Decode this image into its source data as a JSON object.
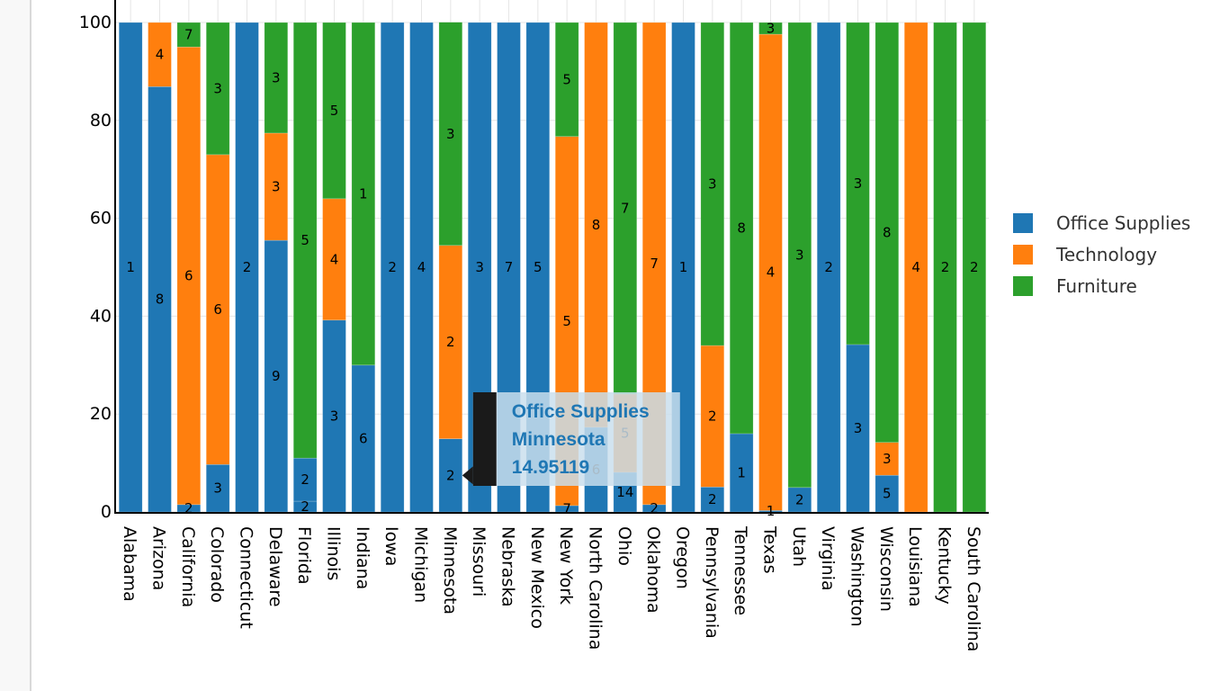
{
  "chart_data": {
    "type": "bar",
    "barmode": "stack",
    "title": "",
    "xlabel": "",
    "ylabel": "",
    "ylim": [
      0,
      100
    ],
    "yticks": [
      0,
      20,
      40,
      60,
      80,
      100
    ],
    "grid": true,
    "legend_position": "right",
    "categories": [
      "Alabama",
      "Arizona",
      "California",
      "Colorado",
      "Connecticut",
      "Delaware",
      "Florida",
      "Illinois",
      "Indiana",
      "Iowa",
      "Michigan",
      "Minnesota",
      "Missouri",
      "Nebraska",
      "New Mexico",
      "New York",
      "North Carolina",
      "Ohio",
      "Oklahoma",
      "Oregon",
      "Pennsylvania",
      "Tennessee",
      "Texas",
      "Utah",
      "Virginia",
      "Washington",
      "Wisconsin",
      "Louisiana",
      "Kentucky",
      "South Carolina"
    ],
    "series": [
      {
        "name": "Office Supplies",
        "color": "#1f77b4",
        "segments": [
          [
            {
              "value": 100,
              "label": "1"
            }
          ],
          [
            {
              "value": 86.9,
              "label": "8"
            }
          ],
          [
            {
              "value": 1.5,
              "label": "2"
            }
          ],
          [
            {
              "value": 9.7,
              "label": "3"
            }
          ],
          [
            {
              "value": 100,
              "label": "2"
            }
          ],
          [
            {
              "value": 55.5,
              "label": "9"
            }
          ],
          [
            {
              "value": 2.2,
              "label": "2"
            },
            {
              "value": 8.8,
              "label": "2"
            }
          ],
          [
            {
              "value": 39.2,
              "label": "3"
            }
          ],
          [
            {
              "value": 30.0,
              "label": "6"
            }
          ],
          [
            {
              "value": 100,
              "label": "2"
            }
          ],
          [
            {
              "value": 100,
              "label": "4"
            }
          ],
          [
            {
              "value": 14.95119,
              "label": "2"
            }
          ],
          [
            {
              "value": 100,
              "label": "3"
            }
          ],
          [
            {
              "value": 100,
              "label": "7"
            }
          ],
          [
            {
              "value": 100,
              "label": "5"
            }
          ],
          [
            {
              "value": 1.3,
              "label": "7"
            }
          ],
          [
            {
              "value": 17.3,
              "label": "6"
            }
          ],
          [
            {
              "value": 8.1,
              "label": "14"
            }
          ],
          [
            {
              "value": 1.5,
              "label": "2"
            }
          ],
          [
            {
              "value": 100,
              "label": "1"
            }
          ],
          [
            {
              "value": 5.1,
              "label": "2"
            }
          ],
          [
            {
              "value": 16.0,
              "label": "1"
            }
          ],
          [
            {
              "value": 0.3,
              "label": "1"
            }
          ],
          [
            {
              "value": 5.0,
              "label": "2"
            }
          ],
          [
            {
              "value": 100,
              "label": "2"
            }
          ],
          [
            {
              "value": 34.2,
              "label": "3"
            }
          ],
          [
            {
              "value": 7.5,
              "label": "5"
            }
          ],
          [],
          [],
          []
        ]
      },
      {
        "name": "Technology",
        "color": "#ff7f0e",
        "segments": [
          [],
          [
            {
              "value": 13.1,
              "label": "4"
            }
          ],
          [
            {
              "value": 93.5,
              "label": "6"
            }
          ],
          [
            {
              "value": 63.3,
              "label": "6"
            }
          ],
          [],
          [
            {
              "value": 21.9,
              "label": "3"
            }
          ],
          [],
          [
            {
              "value": 24.8,
              "label": "4"
            }
          ],
          [],
          [],
          [],
          [
            {
              "value": 39.5,
              "label": "2"
            }
          ],
          [],
          [],
          [],
          [
            {
              "value": 75.4,
              "label": "5"
            }
          ],
          [
            {
              "value": 82.7,
              "label": "8"
            }
          ],
          [
            {
              "value": 16.0,
              "label": "5"
            }
          ],
          [
            {
              "value": 98.5,
              "label": "7"
            }
          ],
          [],
          [
            {
              "value": 28.9,
              "label": "2"
            }
          ],
          [],
          [
            {
              "value": 97.3,
              "label": "4"
            }
          ],
          [],
          [],
          [],
          [
            {
              "value": 6.7,
              "label": "3"
            }
          ],
          [
            {
              "value": 100,
              "label": "4"
            }
          ],
          [],
          []
        ]
      },
      {
        "name": "Furniture",
        "color": "#2ca02c",
        "segments": [
          [],
          [],
          [
            {
              "value": 5.0,
              "label": "7"
            }
          ],
          [
            {
              "value": 27.0,
              "label": "3"
            }
          ],
          [],
          [
            {
              "value": 22.6,
              "label": "3"
            }
          ],
          [
            {
              "value": 89.0,
              "label": "5"
            }
          ],
          [
            {
              "value": 36.0,
              "label": "5"
            }
          ],
          [
            {
              "value": 70.0,
              "label": "1"
            }
          ],
          [],
          [],
          [
            {
              "value": 45.6,
              "label": "3"
            }
          ],
          [],
          [],
          [],
          [
            {
              "value": 23.3,
              "label": "5"
            }
          ],
          [],
          [
            {
              "value": 75.9,
              "label": "7"
            }
          ],
          [],
          [],
          [
            {
              "value": 66.0,
              "label": "3"
            }
          ],
          [
            {
              "value": 84.0,
              "label": "8"
            }
          ],
          [
            {
              "value": 2.4,
              "label": "3"
            }
          ],
          [
            {
              "value": 95.0,
              "label": "3"
            }
          ],
          [],
          [
            {
              "value": 65.8,
              "label": "3"
            }
          ],
          [
            {
              "value": 85.8,
              "label": "8"
            }
          ],
          [],
          [
            {
              "value": 100,
              "label": "2"
            }
          ],
          [
            {
              "value": 100,
              "label": "2"
            }
          ]
        ]
      }
    ],
    "legend": [
      "Office Supplies",
      "Technology",
      "Furniture"
    ],
    "hover_tooltip": {
      "series": "Office Supplies",
      "category": "Minnesota",
      "value": "14.95119",
      "lines": [
        "Office Supplies",
        "Minnesota",
        "14.95119"
      ]
    }
  }
}
